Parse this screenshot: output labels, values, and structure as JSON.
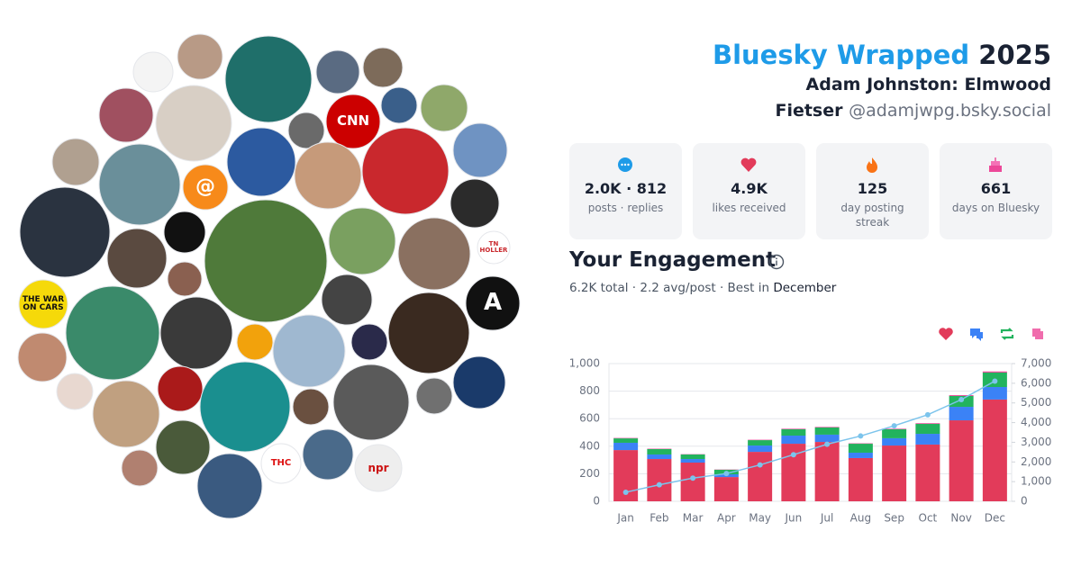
{
  "header": {
    "title": "Bluesky Wrapped",
    "year": "2025",
    "name": "Adam Johnston: Elmwood Fietser",
    "handle": "@adamjwpg.bsky.social"
  },
  "avatar_labels": [
    "CNN",
    "@",
    "TN HOLLER",
    "THE WAR ON CARS",
    "A",
    "THC",
    "npr"
  ],
  "stats": [
    {
      "value": "2.0K · 812",
      "label": "posts · replies"
    },
    {
      "value": "4.9K",
      "label": "likes received"
    },
    {
      "value": "125",
      "label": "day posting streak"
    },
    {
      "value": "661",
      "label": "days on Bluesky"
    }
  ],
  "engagement": {
    "title": "Your Engagement",
    "summary": "6.2K total · 2.2 avg/post · Best in",
    "best": "December"
  },
  "chart_data": {
    "type": "bar",
    "stacked": true,
    "grid": true,
    "categories": [
      "Jan",
      "Feb",
      "Mar",
      "Apr",
      "May",
      "Jun",
      "Jul",
      "Aug",
      "Sep",
      "Oct",
      "Nov",
      "Dec"
    ],
    "series": [
      {
        "color": "#e23b5a",
        "values": [
          372,
          307,
          281,
          176,
          359,
          418,
          431,
          314,
          405,
          412,
          588,
          739
        ]
      },
      {
        "color": "#3b82f6",
        "values": [
          53,
          33,
          26,
          20,
          46,
          59,
          53,
          39,
          53,
          78,
          98,
          91
        ]
      },
      {
        "color": "#22b35e",
        "values": [
          32,
          39,
          33,
          33,
          39,
          46,
          52,
          65,
          65,
          72,
          79,
          105
        ]
      },
      {
        "color": "#ec4899",
        "values": [
          3,
          3,
          2,
          2,
          3,
          4,
          4,
          3,
          4,
          5,
          6,
          8
        ]
      },
      {
        "type": "line",
        "axis": "y2",
        "color": "#7cc4ec",
        "values": [
          460,
          840,
          1180,
          1410,
          1850,
          2370,
          2900,
          3320,
          3840,
          4400,
          5170,
          6110
        ]
      }
    ],
    "ylim": [
      0,
      1000
    ],
    "yticks": [
      0,
      200,
      400,
      600,
      800,
      {
        "value": 1000,
        "label": "1,000"
      }
    ],
    "y2lim": [
      0,
      7000
    ],
    "y2ticks": [
      0,
      {
        "value": 1000,
        "label": "1,000"
      },
      {
        "value": 2000,
        "label": "2,000"
      },
      {
        "value": 3000,
        "label": "3,000"
      },
      {
        "value": 4000,
        "label": "4,000"
      },
      {
        "value": 5000,
        "label": "5,000"
      },
      {
        "value": 6000,
        "label": "6,000"
      },
      {
        "value": 7000,
        "label": "7,000"
      }
    ]
  }
}
